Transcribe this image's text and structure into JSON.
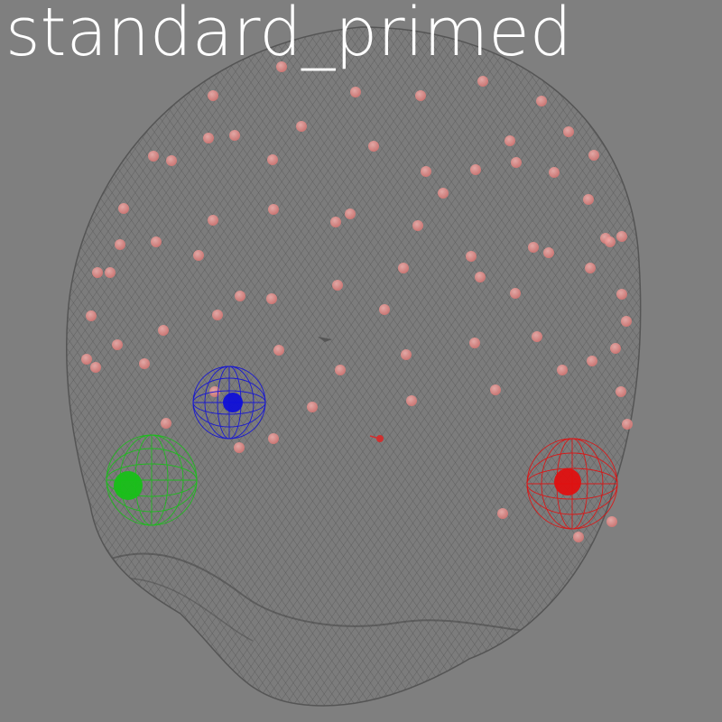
{
  "title": "standard_primed",
  "colors": {
    "background": "#7f7f7f",
    "mesh": "#5f5f5f",
    "electrode": "#e88a87",
    "fiducial_left": "#18c018",
    "fiducial_nasion": "#1010d8",
    "fiducial_right": "#e01010",
    "title": "#ffffff"
  },
  "fiducials": [
    {
      "name": "left-fiducial",
      "color": "#18c018"
    },
    {
      "name": "nasion-fiducial",
      "color": "#1010d8"
    },
    {
      "name": "right-fiducial",
      "color": "#e01010"
    }
  ]
}
